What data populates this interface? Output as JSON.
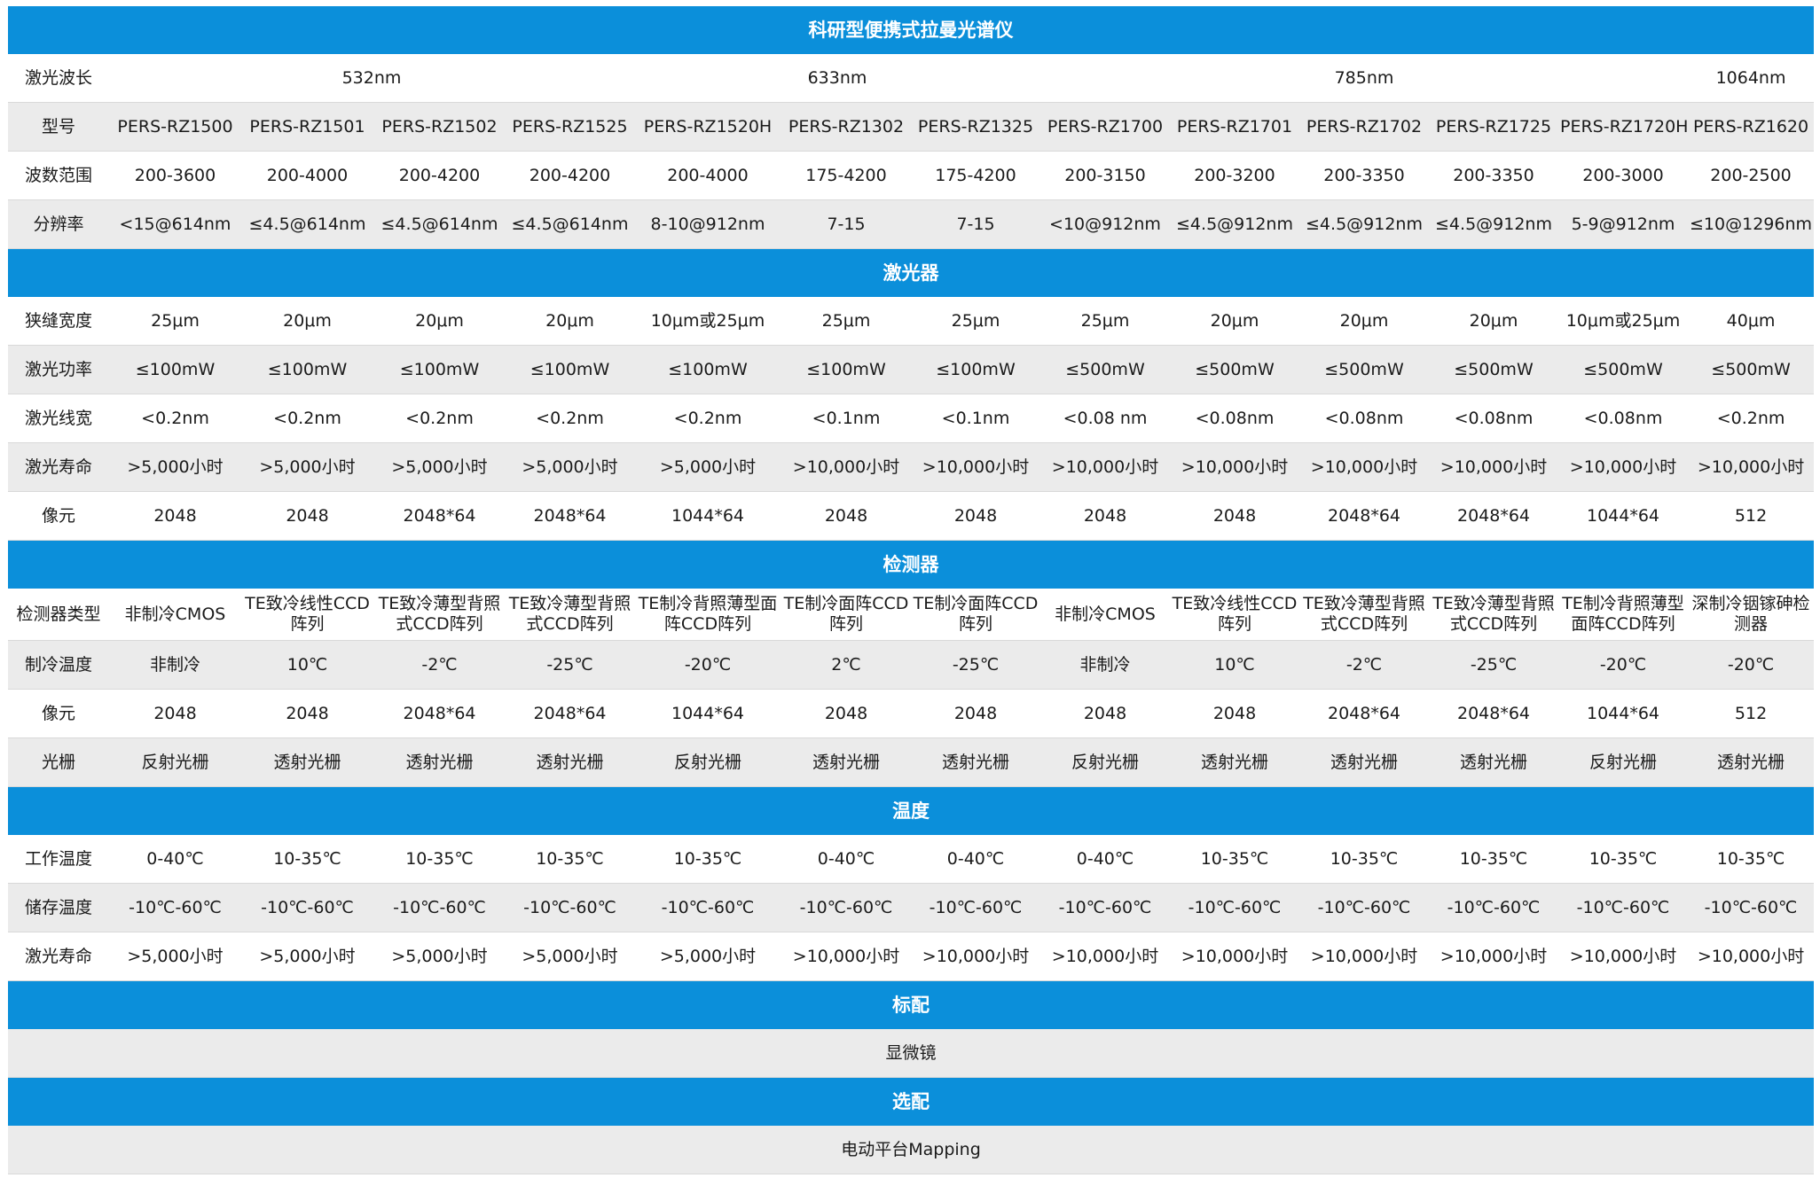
{
  "title": "科研型便携式拉曼光谱仪",
  "wavelength": {
    "label": "激光波长",
    "groups": [
      "532nm",
      "633nm",
      "785nm",
      "1064nm"
    ]
  },
  "rows_top": [
    {
      "label": "型号",
      "cells": [
        "PERS-RZ1500",
        "PERS-RZ1501",
        "PERS-RZ1502",
        "PERS-RZ1525",
        "PERS-RZ1520H",
        "PERS-RZ1302",
        "PERS-RZ1325",
        "PERS-RZ1700",
        "PERS-RZ1701",
        "PERS-RZ1702",
        "PERS-RZ1725",
        "PERS-RZ1720H",
        "PERS-RZ1620"
      ]
    },
    {
      "label": "波数范围",
      "cells": [
        "200-3600",
        "200-4000",
        "200-4200",
        "200-4200",
        "200-4000",
        "175-4200",
        "175-4200",
        "200-3150",
        "200-3200",
        "200-3350",
        "200-3350",
        "200-3000",
        "200-2500"
      ]
    },
    {
      "label": "分辨率",
      "cells": [
        "<15@614nm",
        "≤4.5@614nm",
        "≤4.5@614nm",
        "≤4.5@614nm",
        "8-10@912nm",
        "7-15",
        "7-15",
        "<10@912nm",
        "≤4.5@912nm",
        "≤4.5@912nm",
        "≤4.5@912nm",
        "5-9@912nm",
        "≤10@1296nm"
      ]
    }
  ],
  "sections": {
    "laser": "激光器",
    "detector": "检测器",
    "temperature": "温度",
    "standard": "标配",
    "optional": "选配"
  },
  "rows_laser": [
    {
      "label": "狭缝宽度",
      "cells": [
        "25μm",
        "20μm",
        "20μm",
        "20μm",
        "10μm或25μm",
        "25μm",
        "25μm",
        "25μm",
        "20μm",
        "20μm",
        "20μm",
        "10μm或25μm",
        "40μm"
      ]
    },
    {
      "label": "激光功率",
      "cells": [
        "≤100mW",
        "≤100mW",
        "≤100mW",
        "≤100mW",
        "≤100mW",
        "≤100mW",
        "≤100mW",
        "≤500mW",
        "≤500mW",
        "≤500mW",
        "≤500mW",
        "≤500mW",
        "≤500mW"
      ]
    },
    {
      "label": "激光线宽",
      "cells": [
        "<0.2nm",
        "<0.2nm",
        "<0.2nm",
        "<0.2nm",
        "<0.2nm",
        "<0.1nm",
        "<0.1nm",
        "<0.08 nm",
        "<0.08nm",
        "<0.08nm",
        "<0.08nm",
        "<0.08nm",
        "<0.2nm"
      ]
    },
    {
      "label": "激光寿命",
      "cells": [
        ">5,000小时",
        ">5,000小时",
        ">5,000小时",
        ">5,000小时",
        ">5,000小时",
        ">10,000小时",
        ">10,000小时",
        ">10,000小时",
        ">10,000小时",
        ">10,000小时",
        ">10,000小时",
        ">10,000小时",
        ">10,000小时"
      ]
    },
    {
      "label": "像元",
      "cells": [
        "2048",
        "2048",
        "2048*64",
        "2048*64",
        "1044*64",
        "2048",
        "2048",
        "2048",
        "2048",
        "2048*64",
        "2048*64",
        "1044*64",
        "512"
      ]
    }
  ],
  "rows_detector": [
    {
      "label": "检测器类型",
      "cells": [
        "非制冷CMOS",
        "TE致冷线性CCD阵列",
        "TE致冷薄型背照式CCD阵列",
        "TE致冷薄型背照式CCD阵列",
        "TE制冷背照薄型面阵CCD阵列",
        "TE制冷面阵CCD阵列",
        "TE制冷面阵CCD阵列",
        "非制冷CMOS",
        "TE致冷线性CCD阵列",
        "TE致冷薄型背照式CCD阵列",
        "TE致冷薄型背照式CCD阵列",
        "TE制冷背照薄型面阵CCD阵列",
        "深制冷铟镓砷检测器"
      ]
    },
    {
      "label": "制冷温度",
      "cells": [
        "非制冷",
        "10℃",
        "-2℃",
        "-25℃",
        "-20℃",
        "2℃",
        "-25℃",
        "非制冷",
        "10℃",
        "-2℃",
        "-25℃",
        "-20℃",
        "-20℃"
      ]
    },
    {
      "label": "像元",
      "cells": [
        "2048",
        "2048",
        "2048*64",
        "2048*64",
        "1044*64",
        "2048",
        "2048",
        "2048",
        "2048",
        "2048*64",
        "2048*64",
        "1044*64",
        "512"
      ]
    },
    {
      "label": "光栅",
      "cells": [
        "反射光栅",
        "透射光栅",
        "透射光栅",
        "透射光栅",
        "反射光栅",
        "透射光栅",
        "透射光栅",
        "反射光栅",
        "透射光栅",
        "透射光栅",
        "透射光栅",
        "反射光栅",
        "透射光栅"
      ]
    }
  ],
  "rows_temperature": [
    {
      "label": "工作温度",
      "cells": [
        "0-40℃",
        "10-35℃",
        "10-35℃",
        "10-35℃",
        "10-35℃",
        "0-40℃",
        "0-40℃",
        "0-40℃",
        "10-35℃",
        "10-35℃",
        "10-35℃",
        "10-35℃",
        "10-35℃"
      ]
    },
    {
      "label": "储存温度",
      "cells": [
        "-10℃-60℃",
        "-10℃-60℃",
        "-10℃-60℃",
        "-10℃-60℃",
        "-10℃-60℃",
        "-10℃-60℃",
        "-10℃-60℃",
        "-10℃-60℃",
        "-10℃-60℃",
        "-10℃-60℃",
        "-10℃-60℃",
        "-10℃-60℃",
        "-10℃-60℃"
      ]
    },
    {
      "label": "激光寿命",
      "cells": [
        ">5,000小时",
        ">5,000小时",
        ">5,000小时",
        ">5,000小时",
        ">5,000小时",
        ">10,000小时",
        ">10,000小时",
        ">10,000小时",
        ">10,000小时",
        ">10,000小时",
        ">10,000小时",
        ">10,000小时",
        ">10,000小时"
      ]
    }
  ],
  "standard_item": "显微镜",
  "optional_item": "电动平台Mapping"
}
